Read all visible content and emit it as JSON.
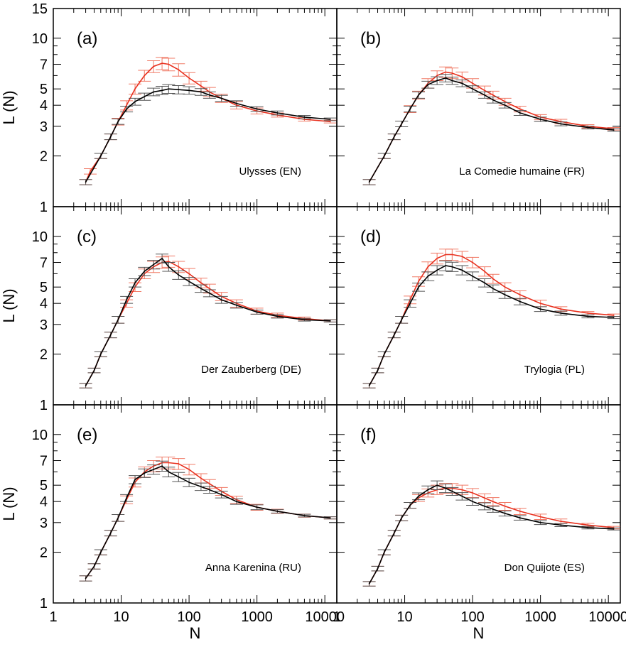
{
  "figure": {
    "colors": {
      "red_series": "#e8301e",
      "red_error": "#f07a66",
      "black_series": "#000000",
      "black_error": "#555555"
    },
    "x_axis": {
      "title": "N",
      "ticks": [
        1,
        10,
        100,
        1000,
        10000
      ],
      "tick_labels": [
        "1",
        "10",
        "100",
        "1000",
        "10000"
      ]
    },
    "y_axis": {
      "title": "L (N)",
      "ticks": [
        1,
        2,
        3,
        4,
        5,
        7,
        10,
        15
      ],
      "tick_labels": [
        "1",
        "2",
        "3",
        "4",
        "5",
        "7",
        "10",
        "15"
      ]
    }
  },
  "chart_data": [
    {
      "type": "line",
      "panel": "(a)",
      "label": "Ulysses  (EN)",
      "xscale": "log",
      "yscale": "log",
      "xlim": [
        1,
        15000
      ],
      "ylim": [
        1,
        15
      ],
      "series": [
        {
          "name": "red",
          "color": "#e8301e",
          "x": [
            3,
            3.5,
            5,
            7,
            9,
            12,
            16,
            22,
            30,
            40,
            50,
            70,
            100,
            150,
            200,
            300,
            500,
            1000,
            2000,
            5000,
            12000
          ],
          "y": [
            1.4,
            1.62,
            2.0,
            2.6,
            3.2,
            4.0,
            5.0,
            6.0,
            6.8,
            7.1,
            7.0,
            6.5,
            5.8,
            5.2,
            4.8,
            4.4,
            4.0,
            3.7,
            3.5,
            3.3,
            3.2
          ],
          "err": [
            0.05,
            0.06,
            0.07,
            0.1,
            0.15,
            0.25,
            0.35,
            0.45,
            0.55,
            0.6,
            0.6,
            0.55,
            0.45,
            0.35,
            0.3,
            0.25,
            0.2,
            0.15,
            0.1,
            0.08,
            0.06
          ]
        },
        {
          "name": "black",
          "color": "#000000",
          "x": [
            3,
            5,
            7,
            9,
            12,
            16,
            22,
            30,
            40,
            50,
            70,
            100,
            150,
            200,
            300,
            500,
            1000,
            2000,
            5000,
            12000
          ],
          "y": [
            1.4,
            2.0,
            2.6,
            3.2,
            3.8,
            4.2,
            4.5,
            4.8,
            4.9,
            5.0,
            4.95,
            4.9,
            4.8,
            4.6,
            4.4,
            4.1,
            3.8,
            3.6,
            3.4,
            3.3
          ],
          "err": [
            0.05,
            0.07,
            0.1,
            0.12,
            0.15,
            0.2,
            0.22,
            0.25,
            0.28,
            0.3,
            0.28,
            0.25,
            0.22,
            0.2,
            0.18,
            0.15,
            0.12,
            0.1,
            0.08,
            0.06
          ]
        }
      ]
    },
    {
      "type": "line",
      "panel": "(b)",
      "label": "La Comedie humaine  (FR)",
      "xscale": "log",
      "yscale": "log",
      "xlim": [
        1,
        15000
      ],
      "ylim": [
        1,
        15
      ],
      "series": [
        {
          "name": "red",
          "color": "#e8301e",
          "x": [
            3,
            5,
            7,
            9,
            12,
            16,
            22,
            30,
            40,
            50,
            70,
            100,
            150,
            200,
            300,
            500,
            1000,
            2000,
            5000,
            12000
          ],
          "y": [
            1.4,
            2.0,
            2.6,
            3.1,
            3.8,
            4.6,
            5.4,
            6.0,
            6.3,
            6.2,
            5.9,
            5.4,
            4.9,
            4.6,
            4.2,
            3.8,
            3.4,
            3.2,
            3.0,
            2.9
          ],
          "err": [
            0.05,
            0.07,
            0.1,
            0.12,
            0.18,
            0.25,
            0.35,
            0.4,
            0.45,
            0.45,
            0.4,
            0.35,
            0.3,
            0.25,
            0.2,
            0.15,
            0.12,
            0.1,
            0.07,
            0.05
          ]
        },
        {
          "name": "black",
          "color": "#000000",
          "x": [
            3,
            5,
            7,
            9,
            12,
            16,
            22,
            30,
            40,
            50,
            70,
            100,
            150,
            200,
            300,
            500,
            1000,
            2000,
            5000,
            12000
          ],
          "y": [
            1.4,
            2.0,
            2.6,
            3.1,
            3.8,
            4.6,
            5.3,
            5.6,
            5.8,
            5.6,
            5.4,
            5.0,
            4.6,
            4.3,
            4.0,
            3.6,
            3.3,
            3.1,
            2.95,
            2.85
          ],
          "err": [
            0.05,
            0.07,
            0.1,
            0.12,
            0.15,
            0.2,
            0.25,
            0.3,
            0.3,
            0.28,
            0.25,
            0.22,
            0.2,
            0.18,
            0.15,
            0.12,
            0.1,
            0.08,
            0.06,
            0.05
          ]
        }
      ]
    },
    {
      "type": "line",
      "panel": "(c)",
      "label": "Der Zauberberg  (DE)",
      "xscale": "log",
      "yscale": "log",
      "xlim": [
        1,
        15000
      ],
      "ylim": [
        1,
        15
      ],
      "series": [
        {
          "name": "red",
          "color": "#e8301e",
          "x": [
            3,
            4,
            5,
            7,
            9,
            12,
            16,
            22,
            30,
            40,
            50,
            70,
            100,
            150,
            200,
            300,
            500,
            1000,
            2000,
            5000,
            12000
          ],
          "y": [
            1.3,
            1.6,
            2.0,
            2.6,
            3.2,
            4.0,
            5.0,
            6.0,
            6.6,
            7.0,
            7.1,
            6.6,
            6.0,
            5.3,
            4.9,
            4.4,
            4.0,
            3.6,
            3.4,
            3.25,
            3.15
          ],
          "err": [
            0.04,
            0.05,
            0.07,
            0.1,
            0.15,
            0.2,
            0.3,
            0.4,
            0.5,
            0.55,
            0.55,
            0.5,
            0.45,
            0.35,
            0.3,
            0.25,
            0.2,
            0.15,
            0.1,
            0.07,
            0.05
          ]
        },
        {
          "name": "black",
          "color": "#000000",
          "x": [
            3,
            4,
            5,
            7,
            9,
            12,
            16,
            22,
            30,
            40,
            50,
            70,
            100,
            150,
            200,
            300,
            500,
            1000,
            2000,
            5000,
            12000
          ],
          "y": [
            1.3,
            1.6,
            2.0,
            2.6,
            3.2,
            4.2,
            5.3,
            6.2,
            6.8,
            7.4,
            6.6,
            5.9,
            5.4,
            4.9,
            4.6,
            4.2,
            3.9,
            3.55,
            3.35,
            3.2,
            3.15
          ],
          "err": [
            0.04,
            0.05,
            0.07,
            0.1,
            0.15,
            0.2,
            0.3,
            0.35,
            0.4,
            0.45,
            0.4,
            0.35,
            0.3,
            0.25,
            0.22,
            0.2,
            0.15,
            0.1,
            0.08,
            0.06,
            0.05
          ]
        }
      ]
    },
    {
      "type": "line",
      "panel": "(d)",
      "label": "Trylogia  (PL)",
      "xscale": "log",
      "yscale": "log",
      "xlim": [
        1,
        15000
      ],
      "ylim": [
        1,
        15
      ],
      "series": [
        {
          "name": "red",
          "color": "#e8301e",
          "x": [
            3,
            4,
            5,
            7,
            9,
            12,
            16,
            22,
            30,
            40,
            50,
            70,
            100,
            150,
            200,
            300,
            500,
            1000,
            2000,
            5000,
            12000
          ],
          "y": [
            1.3,
            1.6,
            2.0,
            2.6,
            3.2,
            4.2,
            5.4,
            6.6,
            7.4,
            7.8,
            7.8,
            7.6,
            7.0,
            6.2,
            5.6,
            5.0,
            4.5,
            4.0,
            3.7,
            3.5,
            3.4
          ],
          "err": [
            0.04,
            0.05,
            0.07,
            0.1,
            0.15,
            0.22,
            0.35,
            0.45,
            0.55,
            0.6,
            0.6,
            0.55,
            0.5,
            0.4,
            0.35,
            0.3,
            0.25,
            0.18,
            0.12,
            0.08,
            0.06
          ]
        },
        {
          "name": "black",
          "color": "#000000",
          "x": [
            3,
            4,
            5,
            7,
            9,
            12,
            16,
            22,
            30,
            40,
            50,
            70,
            100,
            150,
            200,
            300,
            500,
            1000,
            2000,
            5000,
            12000
          ],
          "y": [
            1.3,
            1.6,
            2.0,
            2.6,
            3.2,
            4.0,
            5.0,
            5.8,
            6.3,
            6.7,
            6.6,
            6.3,
            5.8,
            5.3,
            4.9,
            4.5,
            4.1,
            3.7,
            3.5,
            3.35,
            3.3
          ],
          "err": [
            0.04,
            0.05,
            0.07,
            0.1,
            0.15,
            0.2,
            0.28,
            0.35,
            0.4,
            0.45,
            0.42,
            0.4,
            0.35,
            0.3,
            0.25,
            0.22,
            0.18,
            0.12,
            0.1,
            0.07,
            0.05
          ]
        }
      ]
    },
    {
      "type": "line",
      "panel": "(e)",
      "label": "Anna Karenina (RU)",
      "xscale": "log",
      "yscale": "log",
      "xlim": [
        1,
        15000
      ],
      "ylim": [
        1,
        15
      ],
      "series": [
        {
          "name": "red",
          "color": "#e8301e",
          "x": [
            3,
            4,
            5,
            7,
            9,
            12,
            16,
            22,
            30,
            40,
            50,
            70,
            100,
            150,
            200,
            300,
            500,
            1000,
            2000,
            5000,
            12000
          ],
          "y": [
            1.4,
            1.65,
            2.0,
            2.6,
            3.2,
            4.1,
            5.2,
            6.0,
            6.5,
            6.8,
            6.8,
            6.7,
            6.2,
            5.5,
            5.1,
            4.6,
            4.1,
            3.7,
            3.5,
            3.3,
            3.2
          ],
          "err": [
            0.05,
            0.06,
            0.07,
            0.1,
            0.15,
            0.22,
            0.32,
            0.42,
            0.5,
            0.55,
            0.55,
            0.5,
            0.45,
            0.35,
            0.3,
            0.25,
            0.2,
            0.15,
            0.1,
            0.07,
            0.05
          ]
        },
        {
          "name": "black",
          "color": "#000000",
          "x": [
            3,
            4,
            5,
            7,
            9,
            12,
            16,
            22,
            30,
            40,
            50,
            70,
            100,
            150,
            200,
            300,
            500,
            1000,
            2000,
            5000,
            12000
          ],
          "y": [
            1.4,
            1.65,
            2.0,
            2.6,
            3.2,
            4.2,
            5.4,
            5.9,
            6.2,
            6.5,
            6.0,
            5.6,
            5.2,
            4.9,
            4.7,
            4.4,
            4.0,
            3.7,
            3.5,
            3.3,
            3.2
          ],
          "err": [
            0.05,
            0.06,
            0.07,
            0.1,
            0.15,
            0.2,
            0.3,
            0.35,
            0.4,
            0.45,
            0.4,
            0.35,
            0.3,
            0.25,
            0.22,
            0.2,
            0.15,
            0.12,
            0.08,
            0.06,
            0.05
          ]
        }
      ]
    },
    {
      "type": "line",
      "panel": "(f)",
      "label": "Don Quijote  (ES)",
      "xscale": "log",
      "yscale": "log",
      "xlim": [
        1,
        15000
      ],
      "ylim": [
        1,
        15
      ],
      "series": [
        {
          "name": "red",
          "color": "#e8301e",
          "x": [
            3,
            4,
            5,
            7,
            9,
            12,
            16,
            22,
            30,
            40,
            50,
            70,
            100,
            150,
            200,
            300,
            500,
            1000,
            2000,
            5000,
            12000
          ],
          "y": [
            1.3,
            1.6,
            2.0,
            2.6,
            3.2,
            3.8,
            4.2,
            4.5,
            4.7,
            4.8,
            4.8,
            4.7,
            4.5,
            4.2,
            4.0,
            3.75,
            3.5,
            3.25,
            3.05,
            2.9,
            2.8
          ],
          "err": [
            0.04,
            0.05,
            0.07,
            0.1,
            0.12,
            0.15,
            0.2,
            0.25,
            0.3,
            0.32,
            0.32,
            0.3,
            0.28,
            0.25,
            0.22,
            0.2,
            0.15,
            0.12,
            0.1,
            0.07,
            0.05
          ]
        },
        {
          "name": "black",
          "color": "#000000",
          "x": [
            3,
            4,
            5,
            7,
            9,
            12,
            16,
            22,
            30,
            40,
            50,
            70,
            100,
            150,
            200,
            300,
            500,
            1000,
            2000,
            5000,
            12000
          ],
          "y": [
            1.3,
            1.6,
            2.0,
            2.6,
            3.2,
            3.8,
            4.3,
            4.7,
            5.0,
            4.8,
            4.6,
            4.3,
            4.0,
            3.75,
            3.6,
            3.4,
            3.2,
            3.0,
            2.9,
            2.8,
            2.75
          ],
          "err": [
            0.04,
            0.05,
            0.07,
            0.1,
            0.12,
            0.15,
            0.2,
            0.25,
            0.3,
            0.28,
            0.25,
            0.22,
            0.2,
            0.18,
            0.15,
            0.12,
            0.1,
            0.08,
            0.06,
            0.05,
            0.04
          ]
        }
      ]
    }
  ]
}
